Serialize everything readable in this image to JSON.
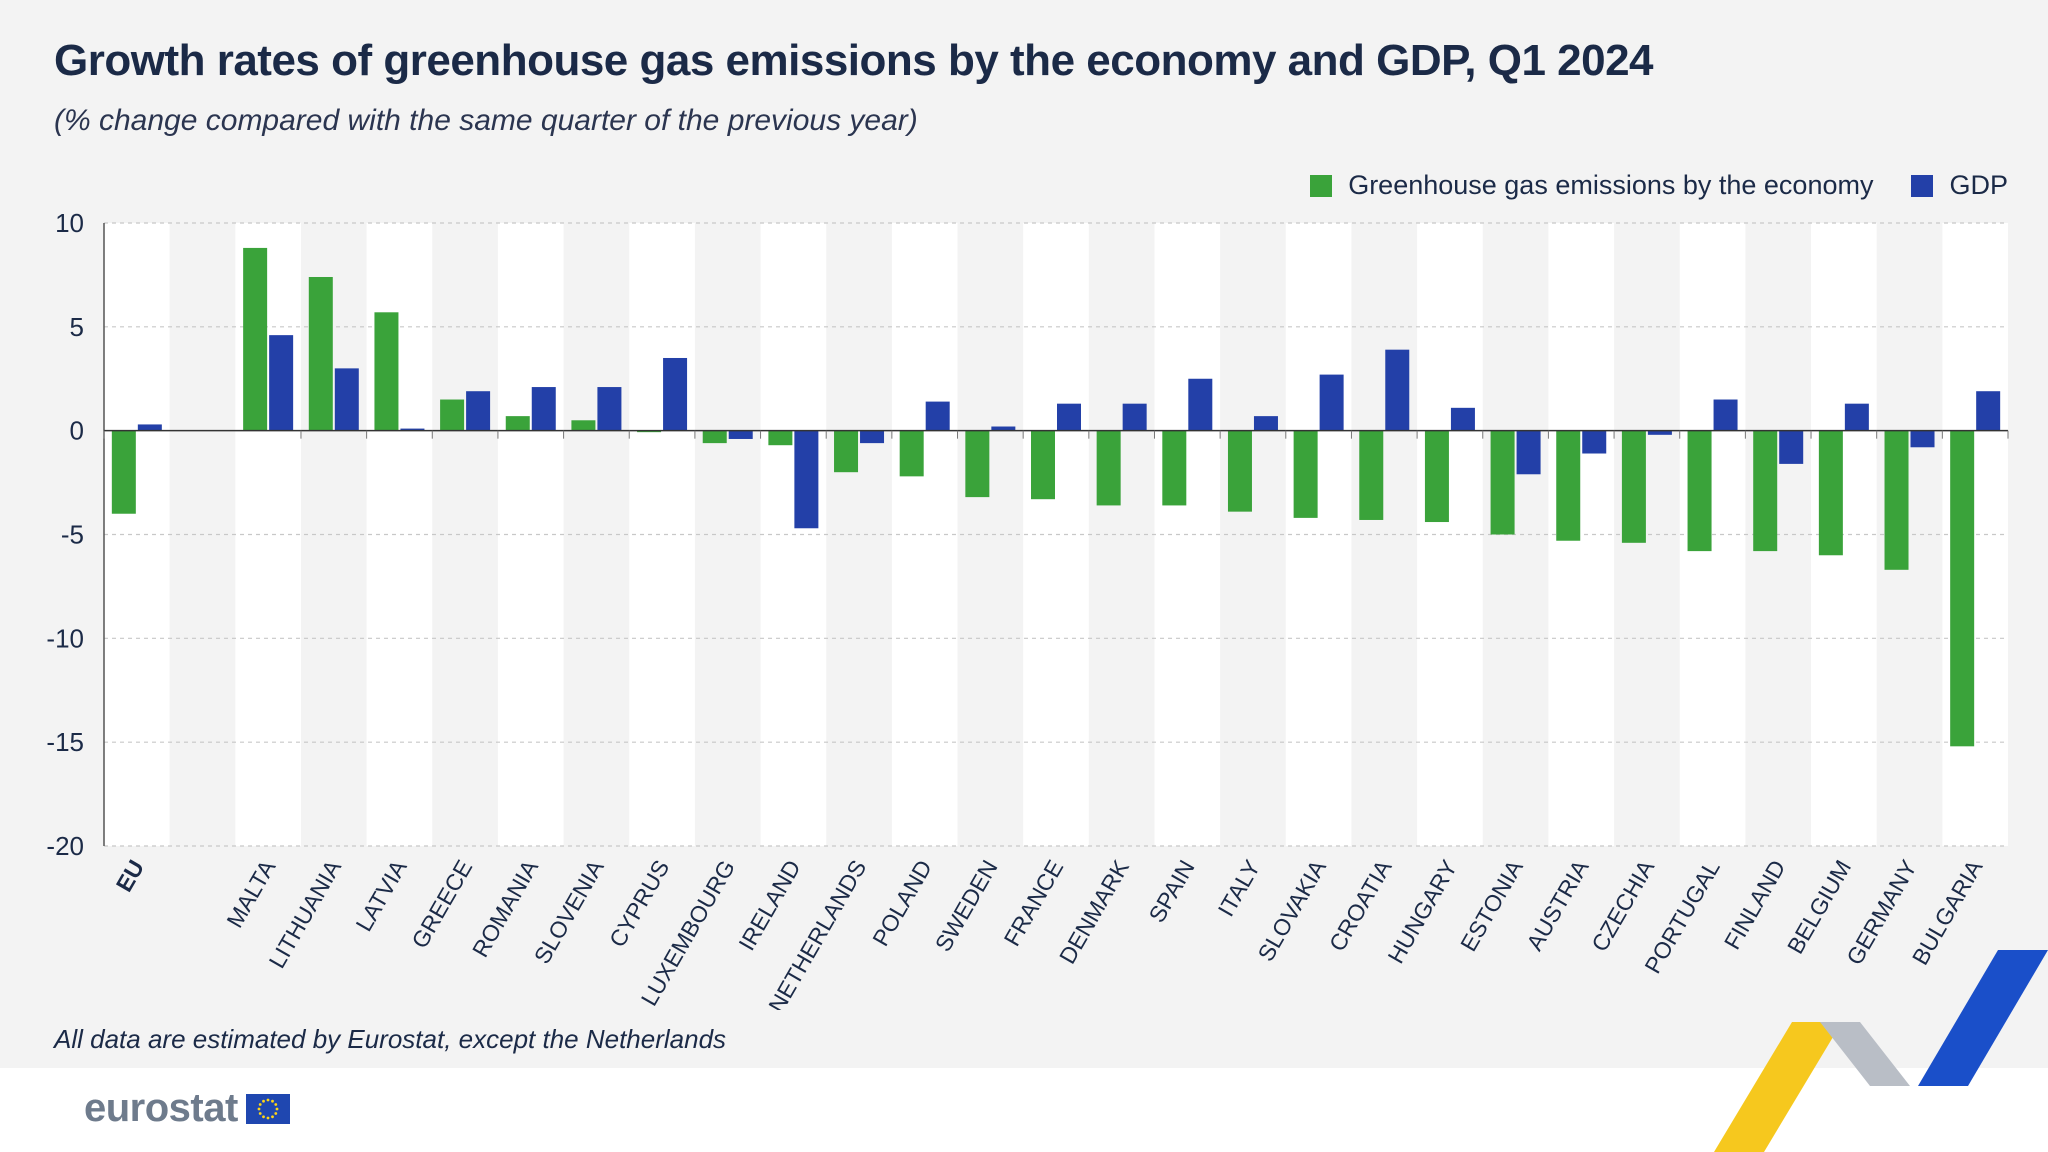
{
  "title": "Growth rates of greenhouse gas emissions by the economy and GDP, Q1 2024",
  "subtitle": "(% change compared with the same quarter of the previous year)",
  "footnote": "All data are estimated by Eurostat, except the Netherlands",
  "logo_text": "eurostat",
  "colors": {
    "ghg": "#3aa33a",
    "gdp": "#2340a8",
    "band": "#f3f3f3",
    "plot": "#ffffff",
    "grid": "#c8c8c8"
  },
  "chart_data": {
    "type": "bar",
    "title": "Growth rates of greenhouse gas emissions by the economy and GDP, Q1 2024",
    "subtitle": "(% change compared with the same quarter of the previous year)",
    "xlabel": "",
    "ylabel": "",
    "ylim": [
      -20,
      10
    ],
    "yticks": [
      10,
      5,
      0,
      -5,
      -10,
      -15,
      -20
    ],
    "grid": true,
    "legend_position": "top-right",
    "categories": [
      "EU",
      "",
      "MALTA",
      "LITHUANIA",
      "LATVIA",
      "GREECE",
      "ROMANIA",
      "SLOVENIA",
      "CYPRUS",
      "LUXEMBOURG",
      "IRELAND",
      "NETHERLANDS",
      "POLAND",
      "SWEDEN",
      "FRANCE",
      "DENMARK",
      "SPAIN",
      "ITALY",
      "SLOVAKIA",
      "CROATIA",
      "HUNGARY",
      "ESTONIA",
      "AUSTRIA",
      "CZECHIA",
      "PORTUGAL",
      "FINLAND",
      "BELGIUM",
      "GERMANY",
      "BULGARIA"
    ],
    "series": [
      {
        "name": "Greenhouse gas emissions by the economy",
        "color": "#3aa33a",
        "values": [
          -4.0,
          null,
          8.8,
          7.4,
          5.7,
          1.5,
          0.7,
          0.5,
          0.0,
          -0.6,
          -0.7,
          -2.0,
          -2.2,
          -3.2,
          -3.3,
          -3.6,
          -3.6,
          -3.9,
          -4.2,
          -4.3,
          -4.4,
          -5.0,
          -5.3,
          -5.4,
          -5.8,
          -5.8,
          -6.0,
          -6.7,
          -15.2
        ]
      },
      {
        "name": "GDP",
        "color": "#2340a8",
        "values": [
          0.3,
          null,
          4.6,
          3.0,
          0.1,
          1.9,
          2.1,
          2.1,
          3.5,
          -0.4,
          -4.7,
          -0.6,
          1.4,
          0.2,
          1.3,
          1.3,
          2.5,
          0.7,
          2.7,
          3.9,
          1.1,
          -2.1,
          -1.1,
          -0.2,
          1.5,
          -1.6,
          1.3,
          -0.8,
          1.9
        ]
      }
    ]
  }
}
